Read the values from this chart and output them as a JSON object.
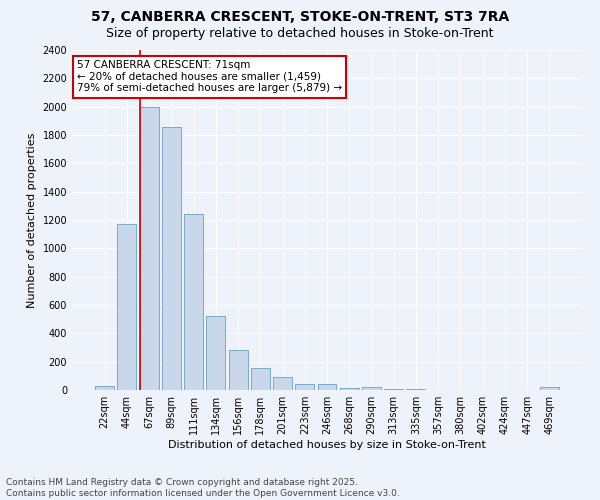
{
  "title": "57, CANBERRA CRESCENT, STOKE-ON-TRENT, ST3 7RA",
  "subtitle": "Size of property relative to detached houses in Stoke-on-Trent",
  "xlabel": "Distribution of detached houses by size in Stoke-on-Trent",
  "ylabel": "Number of detached properties",
  "bar_color": "#c8d8ea",
  "bar_edge_color": "#7aaac8",
  "background_color": "#eef2fa",
  "grid_color": "#ffffff",
  "categories": [
    "22sqm",
    "44sqm",
    "67sqm",
    "89sqm",
    "111sqm",
    "134sqm",
    "156sqm",
    "178sqm",
    "201sqm",
    "223sqm",
    "246sqm",
    "268sqm",
    "290sqm",
    "313sqm",
    "335sqm",
    "357sqm",
    "380sqm",
    "402sqm",
    "424sqm",
    "447sqm",
    "469sqm"
  ],
  "values": [
    25,
    1170,
    2000,
    1860,
    1245,
    520,
    280,
    155,
    95,
    45,
    45,
    15,
    20,
    5,
    5,
    3,
    2,
    2,
    2,
    2,
    18
  ],
  "ylim": [
    0,
    2400
  ],
  "yticks": [
    0,
    200,
    400,
    600,
    800,
    1000,
    1200,
    1400,
    1600,
    1800,
    2000,
    2200,
    2400
  ],
  "property_line_color": "#cc0000",
  "annotation_text": "57 CANBERRA CRESCENT: 71sqm\n← 20% of detached houses are smaller (1,459)\n79% of semi-detached houses are larger (5,879) →",
  "annotation_box_color": "#ffffff",
  "annotation_box_edge": "#cc0000",
  "footer": "Contains HM Land Registry data © Crown copyright and database right 2025.\nContains public sector information licensed under the Open Government Licence v3.0.",
  "title_fontsize": 10,
  "subtitle_fontsize": 9,
  "axis_label_fontsize": 8,
  "tick_fontsize": 7,
  "annotation_fontsize": 7.5,
  "footer_fontsize": 6.5
}
